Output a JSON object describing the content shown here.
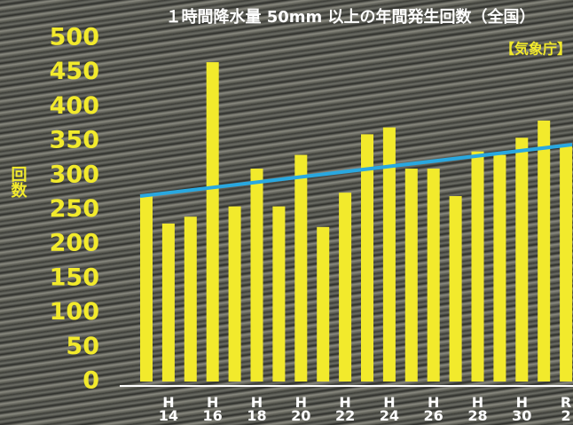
{
  "chart_data": {
    "type": "bar",
    "title": "１時間降水量 50mm 以上の年間発生回数（全国）",
    "source": "【気象庁】",
    "y_label": "回数",
    "categories": [
      null,
      "H 14",
      null,
      "H 16",
      null,
      "H 18",
      null,
      "H 20",
      null,
      "H 22",
      null,
      "H 24",
      null,
      "H 26",
      null,
      "H 28",
      null,
      "H 30",
      null,
      "R 2"
    ],
    "values": [
      270,
      230,
      240,
      465,
      255,
      310,
      255,
      330,
      225,
      275,
      360,
      370,
      310,
      310,
      270,
      335,
      330,
      355,
      380,
      345
    ],
    "color": "#f2ea2c",
    "trend": {
      "values": [
        270,
        345
      ],
      "color": "#29a8e0"
    },
    "ylim": [
      0,
      500
    ],
    "yticks": [
      0,
      50,
      100,
      150,
      200,
      250,
      300,
      350,
      400,
      450,
      500
    ]
  }
}
